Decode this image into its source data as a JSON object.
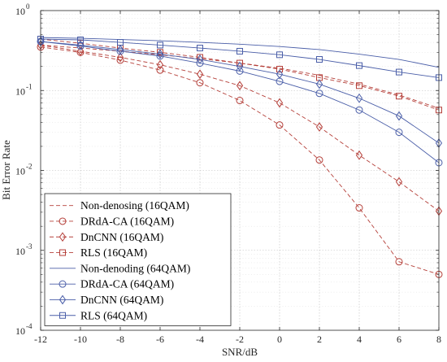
{
  "chart_data": {
    "type": "line",
    "xlabel": "SNR/dB",
    "ylabel": "Bit Error Rate",
    "x": [
      -12,
      -10,
      -8,
      -6,
      -4,
      -2,
      0,
      2,
      4,
      6,
      8
    ],
    "xlim": [
      -12,
      8
    ],
    "ylim": [
      0.0001,
      1
    ],
    "y_scale": "log",
    "grid": true,
    "legend_position": "bottom-left",
    "x_ticks": [
      "-12",
      "-10",
      "-8",
      "-6",
      "-4",
      "-2",
      "0",
      "2",
      "4",
      "6",
      "8"
    ],
    "y_ticks": [
      {
        "value": 1,
        "base": "10",
        "exp": "0"
      },
      {
        "value": 0.1,
        "base": "10",
        "exp": "-1"
      },
      {
        "value": 0.01,
        "base": "10",
        "exp": "-2"
      },
      {
        "value": 0.001,
        "base": "10",
        "exp": "-3"
      },
      {
        "value": 0.0001,
        "base": "10",
        "exp": "-4"
      }
    ],
    "series": [
      {
        "name": "Non-denosing (16QAM)",
        "color": "#b5403a",
        "dash": true,
        "marker": "none",
        "values": [
          0.37,
          0.34,
          0.31,
          0.28,
          0.25,
          0.22,
          0.19,
          0.155,
          0.12,
          0.088,
          0.06
        ]
      },
      {
        "name": "DRdA-CA (16QAM)",
        "color": "#b5403a",
        "dash": true,
        "marker": "circle",
        "values": [
          0.35,
          0.3,
          0.24,
          0.18,
          0.125,
          0.075,
          0.037,
          0.0135,
          0.0034,
          0.00072,
          0.0005
        ]
      },
      {
        "name": "DnCNN (16QAM)",
        "color": "#b5403a",
        "dash": true,
        "marker": "diamond",
        "values": [
          0.37,
          0.31,
          0.26,
          0.21,
          0.16,
          0.115,
          0.07,
          0.035,
          0.0155,
          0.0072,
          0.0031
        ]
      },
      {
        "name": "RLS (16QAM)",
        "color": "#b5403a",
        "dash": true,
        "marker": "square",
        "values": [
          0.44,
          0.39,
          0.34,
          0.3,
          0.26,
          0.22,
          0.185,
          0.145,
          0.115,
          0.085,
          0.057
        ]
      },
      {
        "name": "Non-denoding (64QAM)",
        "color": "#4a5ea8",
        "dash": false,
        "marker": "none",
        "values": [
          0.46,
          0.45,
          0.435,
          0.42,
          0.4,
          0.38,
          0.355,
          0.325,
          0.285,
          0.245,
          0.195
        ]
      },
      {
        "name": "DRdA-CA (64QAM)",
        "color": "#4a5ea8",
        "dash": false,
        "marker": "circle",
        "values": [
          0.41,
          0.36,
          0.31,
          0.27,
          0.22,
          0.175,
          0.13,
          0.092,
          0.057,
          0.03,
          0.0125
        ]
      },
      {
        "name": "DnCNN (64QAM)",
        "color": "#4a5ea8",
        "dash": false,
        "marker": "diamond",
        "values": [
          0.41,
          0.37,
          0.325,
          0.285,
          0.245,
          0.2,
          0.16,
          0.12,
          0.08,
          0.048,
          0.022
        ]
      },
      {
        "name": "RLS (64QAM)",
        "color": "#4a5ea8",
        "dash": false,
        "marker": "square",
        "values": [
          0.44,
          0.43,
          0.4,
          0.37,
          0.34,
          0.31,
          0.28,
          0.245,
          0.205,
          0.17,
          0.145
        ]
      }
    ]
  }
}
